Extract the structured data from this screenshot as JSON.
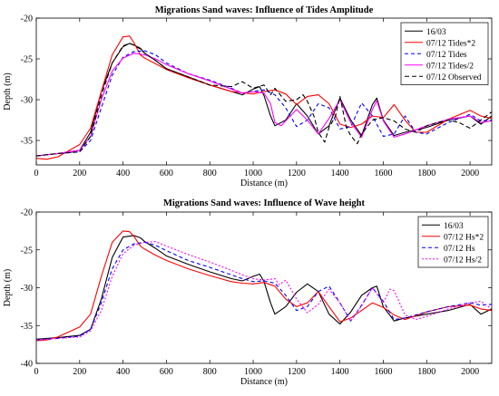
{
  "chart_data": [
    {
      "type": "line",
      "title": "Migrations Sand waves: Influence of Tides Amplitude",
      "xlabel": "Distance (m)",
      "ylabel": "Depth (m)",
      "xlim": [
        0,
        2100
      ],
      "ylim": [
        -38,
        -20
      ],
      "xticks": [
        0,
        200,
        400,
        600,
        800,
        1000,
        1200,
        1400,
        1600,
        1800,
        2000
      ],
      "yticks": [
        -20,
        -25,
        -30,
        -35
      ],
      "grid": false,
      "legend_position": "top-right",
      "series": [
        {
          "name": "16/03",
          "color": "#000000",
          "dash": "solid",
          "x": [
            0,
            100,
            200,
            250,
            300,
            350,
            400,
            430,
            450,
            480,
            500,
            550,
            600,
            700,
            800,
            900,
            950,
            1000,
            1030,
            1050,
            1080,
            1100,
            1150,
            1200,
            1250,
            1300,
            1350,
            1400,
            1450,
            1500,
            1550,
            1570,
            1600,
            1650,
            1700,
            1800,
            1900,
            2000,
            2050,
            2100
          ],
          "y": [
            -36.9,
            -36.6,
            -36.2,
            -34,
            -29,
            -25.5,
            -23.5,
            -23.1,
            -23.3,
            -23.7,
            -24.3,
            -25.2,
            -26.2,
            -27.2,
            -28.2,
            -29,
            -29.4,
            -28.7,
            -28.4,
            -29.5,
            -32,
            -33.2,
            -32.5,
            -30.5,
            -32,
            -34.2,
            -33.2,
            -29.8,
            -32.5,
            -34.4,
            -30.6,
            -29.8,
            -32.5,
            -34.4,
            -34,
            -33.4,
            -32.5,
            -32,
            -33,
            -32
          ]
        },
        {
          "name": "07/12 Tides*2",
          "color": "#ff0000",
          "dash": "solid",
          "x": [
            0,
            50,
            100,
            200,
            250,
            300,
            350,
            400,
            430,
            450,
            480,
            500,
            550,
            600,
            700,
            800,
            900,
            1000,
            1050,
            1100,
            1150,
            1200,
            1250,
            1300,
            1350,
            1400,
            1450,
            1500,
            1550,
            1600,
            1650,
            1700,
            1750,
            1800,
            1900,
            2000,
            2050,
            2100
          ],
          "y": [
            -37.2,
            -37.3,
            -37,
            -35.5,
            -33.5,
            -29,
            -24.5,
            -22.3,
            -22.2,
            -23,
            -24.5,
            -24.9,
            -25.6,
            -26.3,
            -27.3,
            -28.2,
            -29,
            -29.3,
            -29,
            -28.8,
            -29.3,
            -30.6,
            -29.6,
            -29.4,
            -30.5,
            -33,
            -33.4,
            -33,
            -32,
            -32.2,
            -30.6,
            -32.5,
            -34,
            -34,
            -32.4,
            -31.3,
            -32,
            -32.3
          ]
        },
        {
          "name": "07/12 Tides",
          "color": "#0000ff",
          "dash": "4,3",
          "x": [
            0,
            100,
            200,
            250,
            300,
            350,
            400,
            450,
            500,
            550,
            600,
            700,
            800,
            900,
            950,
            1000,
            1050,
            1100,
            1150,
            1200,
            1250,
            1300,
            1350,
            1400,
            1450,
            1500,
            1550,
            1600,
            1650,
            1700,
            1750,
            1800,
            1900,
            2000,
            2050,
            2100
          ],
          "y": [
            -36.9,
            -36.6,
            -36.4,
            -35,
            -31,
            -27,
            -24.8,
            -24.1,
            -24,
            -24.5,
            -25.5,
            -26.8,
            -27.6,
            -28.6,
            -29.2,
            -29,
            -28.8,
            -29.4,
            -31,
            -33.3,
            -32.5,
            -30.5,
            -31,
            -33.6,
            -33.3,
            -30.4,
            -32,
            -34.5,
            -34.2,
            -32,
            -34,
            -34.2,
            -32.8,
            -31.8,
            -32.6,
            -32.5
          ]
        },
        {
          "name": "07/12 Tides/2",
          "color": "#ff00ff",
          "dash": "solid",
          "x": [
            0,
            100,
            200,
            250,
            300,
            350,
            400,
            450,
            500,
            550,
            600,
            700,
            800,
            900,
            950,
            1000,
            1050,
            1080,
            1100,
            1130,
            1150,
            1200,
            1250,
            1300,
            1350,
            1400,
            1450,
            1500,
            1550,
            1570,
            1600,
            1650,
            1700,
            1800,
            1900,
            2000,
            2050,
            2100
          ],
          "y": [
            -36.9,
            -36.6,
            -36.2,
            -34.5,
            -30,
            -26.5,
            -24.9,
            -24.3,
            -24.5,
            -25,
            -25.7,
            -26.8,
            -27.7,
            -28.7,
            -29.2,
            -29,
            -29.2,
            -30.5,
            -32.8,
            -33.2,
            -32.6,
            -31.2,
            -32.5,
            -34.2,
            -32.3,
            -30,
            -32.8,
            -34.6,
            -31.2,
            -30.1,
            -32.6,
            -34.6,
            -34.2,
            -33.2,
            -32.4,
            -32,
            -32.8,
            -32.6
          ]
        },
        {
          "name": "07/12 Observed",
          "color": "#000000",
          "dash": "5,3",
          "x": [
            0,
            100,
            200,
            250,
            300,
            350,
            400,
            430,
            450,
            480,
            500,
            550,
            600,
            700,
            800,
            900,
            950,
            1000,
            1050,
            1080,
            1100,
            1150,
            1200,
            1230,
            1250,
            1280,
            1300,
            1330,
            1350,
            1380,
            1400,
            1430,
            1450,
            1480,
            1500,
            1550,
            1600,
            1650,
            1700,
            1750,
            1800,
            1850,
            1900,
            1950,
            2000,
            2050,
            2100
          ],
          "y": [
            -36.9,
            -36.6,
            -36.4,
            -34.5,
            -29.5,
            -25.5,
            -23.4,
            -23.1,
            -23.3,
            -23.8,
            -24.3,
            -25.2,
            -26.2,
            -27.2,
            -28.2,
            -28.4,
            -27.8,
            -28.6,
            -28.2,
            -29.4,
            -28.6,
            -30.2,
            -30,
            -29.4,
            -30.2,
            -32,
            -34,
            -35.2,
            -33.4,
            -32,
            -29.6,
            -33.4,
            -34.4,
            -35.4,
            -34.2,
            -32.5,
            -32.2,
            -32.6,
            -33.6,
            -34,
            -33.2,
            -32.8,
            -32.5,
            -32.8,
            -33.5,
            -32.5,
            -31.5
          ]
        }
      ]
    },
    {
      "type": "line",
      "title": "Migrations Sand waves: Influence of Wave height",
      "xlabel": "Distance (m)",
      "ylabel": "Depth (m)",
      "xlim": [
        0,
        2100
      ],
      "ylim": [
        -40,
        -20
      ],
      "xticks": [
        0,
        200,
        400,
        600,
        800,
        1000,
        1200,
        1400,
        1600,
        1800,
        2000
      ],
      "yticks": [
        -20,
        -25,
        -30,
        -35,
        -40
      ],
      "grid": false,
      "legend_position": "top-right",
      "series": [
        {
          "name": "16/03",
          "color": "#000000",
          "dash": "solid",
          "x": [
            0,
            100,
            200,
            250,
            300,
            350,
            400,
            450,
            480,
            500,
            550,
            600,
            700,
            800,
            900,
            950,
            1000,
            1030,
            1050,
            1080,
            1100,
            1150,
            1200,
            1250,
            1300,
            1350,
            1400,
            1450,
            1500,
            1550,
            1570,
            1600,
            1650,
            1700,
            1800,
            1900,
            2000,
            2050,
            2100
          ],
          "y": [
            -36.8,
            -36.6,
            -36.3,
            -35.5,
            -31.5,
            -26,
            -23.3,
            -23.1,
            -23.4,
            -23.9,
            -24.8,
            -25.8,
            -26.9,
            -27.9,
            -28.8,
            -29.1,
            -28.5,
            -28.2,
            -29.2,
            -32,
            -33.5,
            -32.5,
            -30.6,
            -29.5,
            -30.5,
            -33.5,
            -34.8,
            -33.2,
            -31,
            -30,
            -29.8,
            -32.5,
            -34.4,
            -34,
            -33.5,
            -33,
            -32.2,
            -33.5,
            -32.8
          ]
        },
        {
          "name": "07/12 Hs*2",
          "color": "#ff0000",
          "dash": "solid",
          "x": [
            0,
            50,
            100,
            200,
            250,
            300,
            350,
            400,
            430,
            450,
            480,
            500,
            550,
            600,
            700,
            800,
            900,
            950,
            1000,
            1050,
            1100,
            1150,
            1200,
            1250,
            1300,
            1350,
            1400,
            1450,
            1500,
            1550,
            1600,
            1650,
            1700,
            1800,
            1900,
            2000,
            2050,
            2100
          ],
          "y": [
            -37,
            -36.9,
            -36.5,
            -35.2,
            -33.5,
            -28.5,
            -24,
            -22.5,
            -22.6,
            -23.2,
            -24.5,
            -24.9,
            -25.7,
            -26.4,
            -27.5,
            -28.4,
            -29.2,
            -29.4,
            -29.5,
            -29.3,
            -29.8,
            -31.5,
            -32.5,
            -32,
            -30.5,
            -32.5,
            -34.5,
            -34,
            -33,
            -32,
            -32.6,
            -33.6,
            -34.2,
            -33.2,
            -32.5,
            -32.3,
            -32.8,
            -33
          ]
        },
        {
          "name": "07/12 Hs",
          "color": "#0000ff",
          "dash": "4,3",
          "x": [
            0,
            100,
            200,
            250,
            300,
            350,
            400,
            450,
            500,
            550,
            600,
            700,
            800,
            900,
            950,
            1000,
            1050,
            1100,
            1150,
            1200,
            1250,
            1300,
            1350,
            1400,
            1450,
            1500,
            1550,
            1600,
            1650,
            1700,
            1800,
            1900,
            2000,
            2050,
            2100
          ],
          "y": [
            -36.9,
            -36.7,
            -36.4,
            -35.5,
            -32,
            -27.5,
            -25,
            -24.2,
            -24,
            -24.4,
            -25.1,
            -26.4,
            -27.3,
            -28.3,
            -28.8,
            -29.2,
            -29.1,
            -29.4,
            -31,
            -33,
            -32.5,
            -30.5,
            -29.8,
            -32,
            -34.4,
            -32.3,
            -30,
            -31.8,
            -34.2,
            -34,
            -33.2,
            -32.5,
            -32,
            -32.3,
            -32.2
          ]
        },
        {
          "name": "07/12 Hs/2",
          "color": "#ff00ff",
          "dash": "2,2",
          "x": [
            0,
            100,
            200,
            250,
            300,
            350,
            400,
            450,
            500,
            550,
            600,
            700,
            800,
            900,
            950,
            1000,
            1050,
            1100,
            1120,
            1150,
            1200,
            1250,
            1300,
            1350,
            1400,
            1450,
            1500,
            1550,
            1600,
            1630,
            1650,
            1700,
            1750,
            1800,
            1900,
            2000,
            2050,
            2100
          ],
          "y": [
            -36.9,
            -36.7,
            -36.5,
            -35.7,
            -33,
            -28.5,
            -25.5,
            -24.4,
            -24,
            -23.9,
            -24.5,
            -25.6,
            -26.6,
            -27.7,
            -28.3,
            -28.8,
            -29,
            -28.8,
            -29.6,
            -29,
            -31.5,
            -33.3,
            -32.2,
            -30.2,
            -32,
            -34.4,
            -32.4,
            -30,
            -32,
            -30.2,
            -30.4,
            -33.6,
            -34.2,
            -33.8,
            -32.8,
            -32,
            -31.8,
            -32.8
          ]
        }
      ]
    }
  ]
}
